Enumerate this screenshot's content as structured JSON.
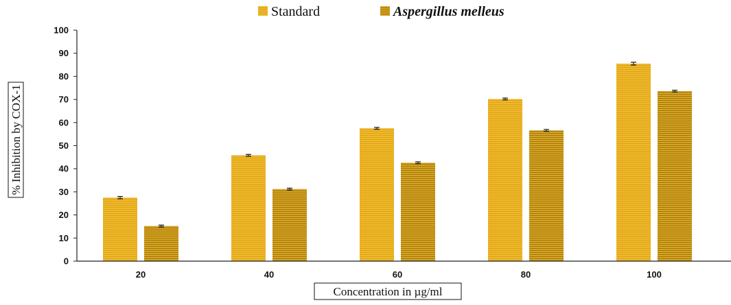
{
  "chart_data": {
    "type": "bar",
    "xlabel": "Concentration in µg/ml",
    "ylabel": "% Inhibition by COX-1",
    "categories": [
      "20",
      "40",
      "60",
      "80",
      "100"
    ],
    "ylim": [
      0,
      100
    ],
    "yticks": [
      0,
      10,
      20,
      30,
      40,
      50,
      60,
      70,
      80,
      90,
      100
    ],
    "grid": false,
    "legend_position": "top-center",
    "series": [
      {
        "name": "Standard",
        "italic": false,
        "color": "#F0B92A",
        "stripe": "#D9A21A",
        "values": [
          27.5,
          45.8,
          57.5,
          70.2,
          85.5
        ],
        "errors": [
          0.5,
          0.4,
          0.4,
          0.4,
          0.6
        ]
      },
      {
        "name": "Aspergillus melleus",
        "italic": true,
        "color": "#D8A520",
        "stripe": "#9C7410",
        "values": [
          15.2,
          31.2,
          42.6,
          56.6,
          73.6
        ],
        "errors": [
          0.4,
          0.4,
          0.4,
          0.4,
          0.4
        ]
      }
    ]
  }
}
